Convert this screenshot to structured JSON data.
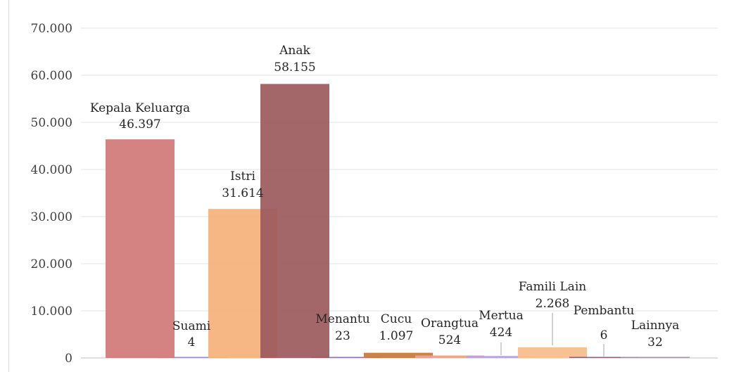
{
  "chart_data": {
    "type": "bar",
    "categories": [
      "Kepala Keluarga",
      "Suami",
      "Istri",
      "Anak",
      "Menantu",
      "Cucu",
      "Orangtua",
      "Mertua",
      "Famili Lain",
      "Pembantu",
      "Lainnya"
    ],
    "values": [
      46397,
      4,
      31614,
      58155,
      23,
      1097,
      524,
      424,
      2268,
      6,
      32
    ],
    "value_labels": [
      "46.397",
      "4",
      "31.614",
      "58.155",
      "23",
      "1.097",
      "524",
      "424",
      "2.268",
      "6",
      "32"
    ],
    "colors": [
      "#d37b7b",
      "#9a88c2",
      "#f6b27b",
      "#9c5a5e",
      "#8e6bb0",
      "#c97a3d",
      "#e9a48e",
      "#b9a3d2",
      "#f7bf8d",
      "#8c5a78",
      "#a98aa5"
    ],
    "ylim": [
      0,
      70000
    ],
    "yticks": [
      "0",
      "10.000",
      "20.000",
      "30.000",
      "40.000",
      "50.000",
      "60.000",
      "70.000"
    ],
    "grid": true,
    "title": "",
    "xlabel": "",
    "ylabel": ""
  }
}
